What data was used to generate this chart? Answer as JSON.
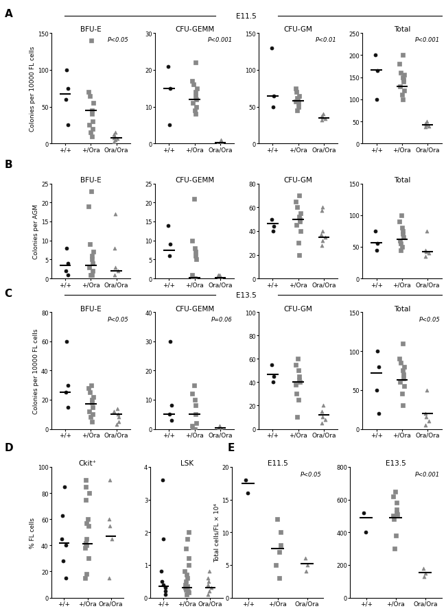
{
  "panel_A": {
    "label": "A",
    "title": "E11.5",
    "ylabel": "Colonies per 10000 FL cells",
    "subplots": [
      {
        "title": "BFU-E",
        "pval": "P<0.05",
        "ylim": [
          0,
          150
        ],
        "yticks": [
          0,
          50,
          100,
          150
        ],
        "median_line": [
          67,
          45,
          8
        ],
        "groups": {
          "+/+": {
            "marker": "o",
            "color": "#111111",
            "values": [
              25,
              60,
              75,
              100
            ]
          },
          "+/Ora": {
            "marker": "s",
            "color": "#888888",
            "values": [
              10,
              15,
              20,
              25,
              30,
              40,
              45,
              55,
              65,
              70,
              140
            ]
          },
          "Ora/Ora": {
            "marker": "^",
            "color": "#888888",
            "values": [
              2,
              5,
              7,
              8,
              10,
              12,
              15
            ]
          }
        }
      },
      {
        "title": "CFU-GEMM",
        "pval": "P<0.001",
        "ylim": [
          0,
          30
        ],
        "yticks": [
          0,
          10,
          20,
          30
        ],
        "median_line": [
          15,
          12,
          0.3
        ],
        "groups": {
          "+/+": {
            "marker": "o",
            "color": "#111111",
            "values": [
              5,
              15,
              21
            ]
          },
          "+/Ora": {
            "marker": "s",
            "color": "#888888",
            "values": [
              8,
              9,
              10,
              11,
              12,
              13,
              14,
              15,
              16,
              17,
              22
            ]
          },
          "Ora/Ora": {
            "marker": "^",
            "color": "#888888",
            "values": [
              0,
              0,
              0,
              0,
              0,
              1
            ]
          }
        }
      },
      {
        "title": "CFU-GM",
        "pval": "P<0.01",
        "ylim": [
          0,
          150
        ],
        "yticks": [
          0,
          50,
          100,
          150
        ],
        "median_line": [
          65,
          58,
          35
        ],
        "groups": {
          "+/+": {
            "marker": "o",
            "color": "#111111",
            "values": [
              50,
              65,
              130
            ]
          },
          "+/Ora": {
            "marker": "s",
            "color": "#888888",
            "values": [
              45,
              50,
              55,
              57,
              60,
              62,
              65,
              70,
              75
            ]
          },
          "Ora/Ora": {
            "marker": "^",
            "color": "#888888",
            "values": [
              32,
              34,
              36,
              38,
              40
            ]
          }
        }
      },
      {
        "title": "Total",
        "pval": "P<0.001",
        "ylim": [
          0,
          250
        ],
        "yticks": [
          0,
          50,
          100,
          150,
          200,
          250
        ],
        "median_line": [
          167,
          130,
          43
        ],
        "groups": {
          "+/+": {
            "marker": "o",
            "color": "#111111",
            "values": [
              100,
              165,
              200
            ]
          },
          "+/Ora": {
            "marker": "s",
            "color": "#888888",
            "values": [
              100,
              110,
              120,
              130,
              140,
              145,
              150,
              155,
              160,
              180,
              200
            ]
          },
          "Ora/Ora": {
            "marker": "^",
            "color": "#888888",
            "values": [
              38,
              40,
              42,
              45,
              50
            ]
          }
        }
      }
    ]
  },
  "panel_B": {
    "label": "B",
    "ylabel": "Colonies per AGM",
    "subplots": [
      {
        "title": "BFU-E",
        "pval": null,
        "ylim": [
          0,
          25
        ],
        "yticks": [
          0,
          5,
          10,
          15,
          20,
          25
        ],
        "median_line": [
          3.5,
          3.5,
          2
        ],
        "groups": {
          "+/+": {
            "marker": "o",
            "color": "#111111",
            "values": [
              1,
              2,
              4,
              8
            ]
          },
          "+/Ora": {
            "marker": "s",
            "color": "#888888",
            "values": [
              1,
              1,
              2,
              3,
              4,
              5,
              6,
              7,
              9,
              19,
              23
            ]
          },
          "Ora/Ora": {
            "marker": "^",
            "color": "#888888",
            "values": [
              1,
              2,
              3,
              8,
              17
            ]
          }
        }
      },
      {
        "title": "CFU-GEMM",
        "pval": null,
        "ylim": [
          0,
          25
        ],
        "yticks": [
          0,
          5,
          10,
          15,
          20,
          25
        ],
        "median_line": [
          7.5,
          0.3,
          0.3
        ],
        "groups": {
          "+/+": {
            "marker": "o",
            "color": "#111111",
            "values": [
              6,
              9,
              14
            ]
          },
          "+/Ora": {
            "marker": "s",
            "color": "#888888",
            "values": [
              0,
              0,
              0,
              1,
              5,
              6,
              7,
              8,
              10,
              21
            ]
          },
          "Ora/Ora": {
            "marker": "^",
            "color": "#888888",
            "values": [
              0,
              0,
              0,
              1,
              1
            ]
          }
        }
      },
      {
        "title": "CFU-GM",
        "pval": null,
        "ylim": [
          0,
          80
        ],
        "yticks": [
          0,
          20,
          40,
          60,
          80
        ],
        "median_line": [
          46,
          50,
          35
        ],
        "groups": {
          "+/+": {
            "marker": "o",
            "color": "#111111",
            "values": [
              40,
              44,
              50
            ]
          },
          "+/Ora": {
            "marker": "s",
            "color": "#888888",
            "values": [
              20,
              30,
              40,
              45,
              48,
              50,
              52,
              55,
              60,
              65,
              70
            ]
          },
          "Ora/Ora": {
            "marker": "^",
            "color": "#888888",
            "values": [
              28,
              32,
              35,
              37,
              40,
              57,
              60
            ]
          }
        }
      },
      {
        "title": "Total",
        "pval": null,
        "ylim": [
          0,
          150
        ],
        "yticks": [
          0,
          50,
          100,
          150
        ],
        "median_line": [
          57,
          62,
          42
        ],
        "groups": {
          "+/+": {
            "marker": "o",
            "color": "#111111",
            "values": [
              45,
              55,
              75
            ]
          },
          "+/Ora": {
            "marker": "s",
            "color": "#888888",
            "values": [
              45,
              50,
              55,
              60,
              65,
              70,
              75,
              80,
              90,
              100
            ]
          },
          "Ora/Ora": {
            "marker": "^",
            "color": "#888888",
            "values": [
              35,
              40,
              42,
              45,
              75
            ]
          }
        }
      }
    ]
  },
  "panel_C": {
    "label": "C",
    "title": "E13.5",
    "ylabel": "Colonies per 10000 FL cells",
    "subplots": [
      {
        "title": "BFU-E",
        "pval": "P<0.05",
        "ylim": [
          0,
          80
        ],
        "yticks": [
          0,
          20,
          40,
          60,
          80
        ],
        "median_line": [
          25,
          17,
          10
        ],
        "groups": {
          "+/+": {
            "marker": "o",
            "color": "#111111",
            "values": [
              15,
              25,
              30,
              60
            ]
          },
          "+/Ora": {
            "marker": "s",
            "color": "#888888",
            "values": [
              5,
              8,
              10,
              12,
              15,
              18,
              20,
              22,
              25,
              28,
              30
            ]
          },
          "Ora/Ora": {
            "marker": "^",
            "color": "#888888",
            "values": [
              3,
              5,
              8,
              10,
              12,
              14
            ]
          }
        }
      },
      {
        "title": "CFU-GEMM",
        "pval": "P=0.06",
        "ylim": [
          0,
          40
        ],
        "yticks": [
          0,
          10,
          20,
          30,
          40
        ],
        "median_line": [
          5,
          5,
          0.3
        ],
        "groups": {
          "+/+": {
            "marker": "o",
            "color": "#111111",
            "values": [
              3,
              5,
              8,
              30
            ]
          },
          "+/Ora": {
            "marker": "s",
            "color": "#888888",
            "values": [
              0,
              0,
              0,
              1,
              2,
              5,
              8,
              10,
              12,
              15
            ]
          },
          "Ora/Ora": {
            "marker": "^",
            "color": "#888888",
            "values": [
              0,
              0,
              0,
              0,
              1
            ]
          }
        }
      },
      {
        "title": "CFU-GM",
        "pval": null,
        "ylim": [
          0,
          100
        ],
        "yticks": [
          0,
          20,
          40,
          60,
          80,
          100
        ],
        "median_line": [
          47,
          40,
          12
        ],
        "groups": {
          "+/+": {
            "marker": "o",
            "color": "#111111",
            "values": [
              40,
              45,
              55
            ]
          },
          "+/Ora": {
            "marker": "s",
            "color": "#888888",
            "values": [
              10,
              25,
              30,
              38,
              40,
              42,
              45,
              50,
              55,
              60
            ]
          },
          "Ora/Ora": {
            "marker": "^",
            "color": "#888888",
            "values": [
              5,
              8,
              10,
              15,
              20
            ]
          }
        }
      },
      {
        "title": "Total",
        "pval": "P<0.05",
        "ylim": [
          0,
          150
        ],
        "yticks": [
          0,
          50,
          100,
          150
        ],
        "median_line": [
          72,
          63,
          20
        ],
        "groups": {
          "+/+": {
            "marker": "o",
            "color": "#111111",
            "values": [
              20,
              50,
              80,
              100
            ]
          },
          "+/Ora": {
            "marker": "s",
            "color": "#888888",
            "values": [
              30,
              45,
              55,
              60,
              65,
              70,
              75,
              80,
              85,
              90,
              110
            ]
          },
          "Ora/Ora": {
            "marker": "^",
            "color": "#888888",
            "values": [
              5,
              10,
              15,
              20,
              50
            ]
          }
        }
      }
    ]
  },
  "panel_D": {
    "label": "D",
    "ylabel": "% FL cells",
    "subplots": [
      {
        "title": "Ckit⁺",
        "pval": null,
        "ylim": [
          0,
          100
        ],
        "yticks": [
          0,
          20,
          40,
          60,
          80,
          100
        ],
        "median_line": [
          42,
          41,
          47
        ],
        "groups": {
          "+/+": {
            "marker": "o",
            "color": "#111111",
            "values": [
              15,
              28,
              40,
              45,
              63,
              85
            ]
          },
          "+/Ora": {
            "marker": "s",
            "color": "#888888",
            "values": [
              15,
              18,
              30,
              38,
              40,
              42,
              45,
              55,
              57,
              60,
              75,
              80,
              85,
              90
            ]
          },
          "Ora/Ora": {
            "marker": "^",
            "color": "#888888",
            "values": [
              15,
              45,
              55,
              60,
              90
            ]
          }
        }
      },
      {
        "title": "LSK",
        "pval": null,
        "ylim": [
          0,
          4
        ],
        "yticks": [
          0,
          1,
          2,
          3,
          4
        ],
        "median_line": [
          0.35,
          0.3,
          0.3
        ],
        "groups": {
          "+/+": {
            "marker": "o",
            "color": "#111111",
            "values": [
              0.1,
              0.2,
              0.3,
              0.4,
              0.5,
              0.8,
              1.8,
              3.6
            ]
          },
          "+/Ora": {
            "marker": "s",
            "color": "#888888",
            "values": [
              0.1,
              0.15,
              0.2,
              0.25,
              0.3,
              0.35,
              0.4,
              0.5,
              0.6,
              0.7,
              0.8,
              1.0,
              1.2,
              1.5,
              1.8,
              2.0
            ]
          },
          "Ora/Ora": {
            "marker": "^",
            "color": "#888888",
            "values": [
              0.1,
              0.2,
              0.3,
              0.4,
              0.5,
              0.6,
              0.8
            ]
          }
        }
      }
    ]
  },
  "panel_E": {
    "label": "E",
    "ylabel": "Total cells/FL × 10⁴",
    "subplots": [
      {
        "title": "E11.5",
        "pval": "P<0.05",
        "ylim": [
          0,
          20
        ],
        "yticks": [
          0,
          5,
          10,
          15,
          20
        ],
        "median_line": [
          17.5,
          7.5,
          5.2
        ],
        "groups": {
          "+/+": {
            "marker": "o",
            "color": "#111111",
            "values": [
              16,
              18
            ]
          },
          "+/Ora": {
            "marker": "s",
            "color": "#888888",
            "values": [
              3,
              5,
              7,
              8,
              10,
              12
            ]
          },
          "Ora/Ora": {
            "marker": "^",
            "color": "#888888",
            "values": [
              4,
              5,
              6
            ]
          }
        }
      },
      {
        "title": "E13.5",
        "pval": "P<0.001",
        "ylim": [
          0,
          800
        ],
        "yticks": [
          0,
          200,
          400,
          600,
          800
        ],
        "median_line": [
          490,
          490,
          155
        ],
        "groups": {
          "+/+": {
            "marker": "o",
            "color": "#111111",
            "values": [
              400,
              520
            ]
          },
          "+/Ora": {
            "marker": "s",
            "color": "#888888",
            "values": [
              300,
              380,
              480,
              500,
              510,
              520,
              540,
              580,
              620,
              650
            ]
          },
          "Ora/Ora": {
            "marker": "^",
            "color": "#888888",
            "values": [
              130,
              150,
              180
            ]
          }
        }
      }
    ]
  },
  "xgroup_labels": [
    "+/+",
    "+/Ora",
    "Ora/Ora"
  ]
}
